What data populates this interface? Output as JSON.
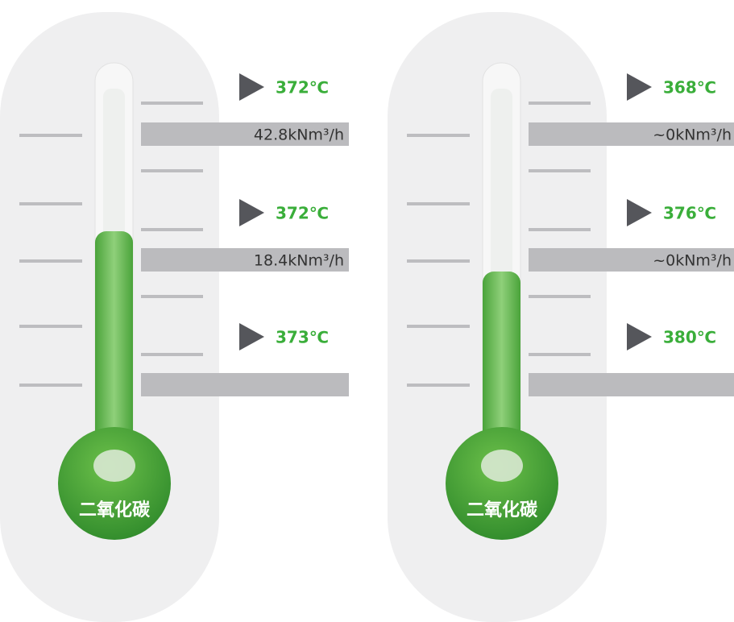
{
  "thermometers": [
    {
      "label": "二氧化碳",
      "temperatures": [
        "372℃",
        "372℃",
        "373℃"
      ],
      "flows": [
        "42.8kNm³/h",
        "18.4kNm³/h"
      ]
    },
    {
      "label": "二氧化碳",
      "temperatures": [
        "368℃",
        "376℃",
        "380℃"
      ],
      "flows": [
        "~0kNm³/h",
        "~0kNm³/h"
      ]
    }
  ]
}
